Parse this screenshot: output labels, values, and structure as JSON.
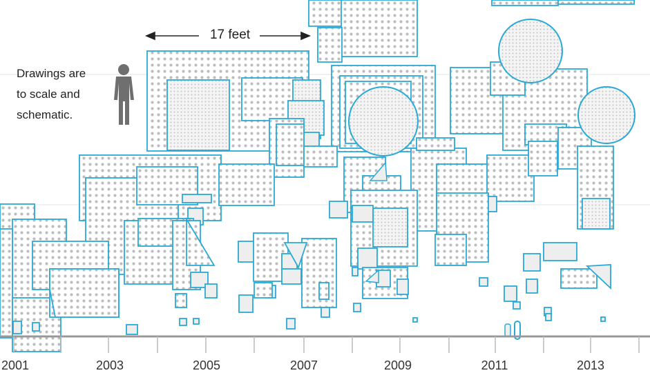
{
  "annotations": {
    "scale_label": "17 feet",
    "note_lines": [
      "Drawings are",
      "to scale and",
      "schematic."
    ]
  },
  "timeline": {
    "years": [
      "2001",
      "2003",
      "2005",
      "2007",
      "2009",
      "2011",
      "2013"
    ]
  },
  "colors": {
    "outline": "#29a9d6",
    "dot": "#b9b9b9",
    "fill": "#eeeeee",
    "axis": "#999999",
    "figure": "#6f6f6f"
  }
}
